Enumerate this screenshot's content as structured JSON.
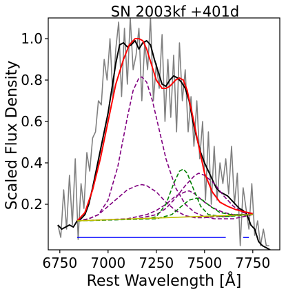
{
  "chart_data": {
    "type": "line",
    "title": "SN 2003kf  +401d",
    "xlabel": "Rest Wavelength [Å]",
    "ylabel": "Scaled Flux Density",
    "xlim": [
      6690,
      7890
    ],
    "ylim": [
      -0.02,
      1.1
    ],
    "xticks": [
      6750,
      7000,
      7250,
      7500,
      7750
    ],
    "yticks": [
      0.2,
      0.4,
      0.6,
      0.8,
      1.0
    ],
    "xtick_labels": [
      "6750",
      "7000",
      "7250",
      "7500",
      "7750"
    ],
    "ytick_labels": [
      "0.2",
      "0.4",
      "0.6",
      "0.8",
      "1.0"
    ],
    "grid": false,
    "series": [
      {
        "role": "raw-spectrum",
        "color": "#808080",
        "width": 1.6,
        "x": [
          6740,
          6755,
          6770,
          6785,
          6800,
          6815,
          6830,
          6845,
          6860,
          6875,
          6890,
          6905,
          6920,
          6935,
          6950,
          6965,
          6980,
          6995,
          7010,
          7025,
          7040,
          7055,
          7070,
          7085,
          7100,
          7115,
          7130,
          7145,
          7160,
          7175,
          7190,
          7205,
          7220,
          7235,
          7250,
          7265,
          7280,
          7295,
          7310,
          7325,
          7340,
          7355,
          7370,
          7385,
          7400,
          7415,
          7430,
          7445,
          7460,
          7475,
          7490,
          7505,
          7520,
          7535,
          7550,
          7565,
          7580,
          7595,
          7610,
          7625,
          7640,
          7655,
          7670,
          7685,
          7700,
          7715,
          7730,
          7745,
          7760,
          7775,
          7790,
          7805,
          7820,
          7835
        ],
        "y": [
          0.1,
          0.04,
          0.27,
          0.08,
          0.34,
          0.1,
          0.42,
          0.03,
          0.3,
          0.18,
          0.45,
          0.36,
          0.52,
          0.55,
          0.7,
          0.68,
          0.9,
          0.8,
          1.0,
          0.72,
          0.95,
          1.08,
          0.72,
          1.05,
          0.78,
          1.1,
          0.85,
          0.92,
          1.05,
          0.7,
          0.98,
          0.85,
          1.1,
          0.7,
          0.88,
          0.76,
          1.02,
          0.6,
          0.9,
          0.62,
          0.92,
          0.55,
          0.98,
          0.7,
          0.85,
          0.55,
          0.72,
          0.48,
          0.7,
          0.42,
          0.6,
          0.22,
          0.55,
          0.2,
          0.48,
          0.22,
          0.4,
          0.3,
          0.42,
          0.25,
          0.48,
          0.2,
          0.35,
          0.0,
          0.28,
          0.18,
          0.08,
          0.3,
          0.05,
          0.12,
          0.0,
          0.08,
          0.0,
          0.0
        ]
      },
      {
        "role": "smoothed-spectrum",
        "color": "#000000",
        "width": 2,
        "x": [
          6740,
          6760,
          6780,
          6800,
          6820,
          6840,
          6860,
          6880,
          6900,
          6920,
          6940,
          6960,
          6980,
          7000,
          7020,
          7040,
          7060,
          7080,
          7100,
          7120,
          7140,
          7160,
          7180,
          7200,
          7220,
          7240,
          7260,
          7280,
          7300,
          7320,
          7340,
          7360,
          7380,
          7400,
          7420,
          7440,
          7460,
          7480,
          7500,
          7520,
          7540,
          7560,
          7580,
          7600,
          7620,
          7640,
          7660,
          7680,
          7700,
          7720,
          7740,
          7760,
          7780,
          7800,
          7820,
          7840
        ],
        "y": [
          0.1,
          0.08,
          0.09,
          0.1,
          0.09,
          0.12,
          0.13,
          0.15,
          0.2,
          0.28,
          0.37,
          0.46,
          0.55,
          0.64,
          0.76,
          0.88,
          0.97,
          0.98,
          0.96,
          0.97,
          0.99,
          0.95,
          0.98,
          0.99,
          0.97,
          0.9,
          0.84,
          0.78,
          0.77,
          0.8,
          0.82,
          0.81,
          0.79,
          0.76,
          0.7,
          0.6,
          0.52,
          0.45,
          0.4,
          0.36,
          0.32,
          0.28,
          0.26,
          0.25,
          0.24,
          0.22,
          0.2,
          0.18,
          0.17,
          0.15,
          0.1,
          0.08,
          0.02,
          0.0,
          -0.01,
          -0.02
        ]
      },
      {
        "role": "gaussian-component",
        "color": "#800080",
        "dash": "6 3",
        "width": 1.6,
        "x": [
          6840,
          6900,
          6950,
          7000,
          7050,
          7100,
          7130,
          7160,
          7175,
          7200,
          7230,
          7260,
          7300,
          7350,
          7400,
          7450,
          7500,
          7550,
          7600,
          7650,
          7700,
          7750
        ],
        "y": [
          0.12,
          0.13,
          0.15,
          0.22,
          0.38,
          0.62,
          0.75,
          0.81,
          0.815,
          0.79,
          0.7,
          0.58,
          0.42,
          0.28,
          0.2,
          0.16,
          0.14,
          0.13,
          0.13,
          0.13,
          0.14,
          0.15
        ]
      },
      {
        "role": "gaussian-component",
        "color": "#800080",
        "dash": "6 3",
        "width": 1.6,
        "x": [
          6840,
          6900,
          6950,
          7000,
          7050,
          7100,
          7150,
          7175,
          7200,
          7250,
          7300,
          7350,
          7400,
          7450,
          7500,
          7550,
          7600,
          7650,
          7700,
          7750
        ],
        "y": [
          0.12,
          0.13,
          0.15,
          0.19,
          0.23,
          0.27,
          0.29,
          0.295,
          0.29,
          0.26,
          0.21,
          0.17,
          0.145,
          0.135,
          0.135,
          0.14,
          0.14,
          0.145,
          0.15,
          0.15
        ]
      },
      {
        "role": "gaussian-component",
        "color": "#800080",
        "dash": "6 3",
        "width": 1.6,
        "x": [
          6840,
          7000,
          7150,
          7250,
          7300,
          7350,
          7400,
          7450,
          7470,
          7500,
          7550,
          7600,
          7650,
          7700,
          7750
        ],
        "y": [
          0.12,
          0.125,
          0.13,
          0.15,
          0.18,
          0.23,
          0.29,
          0.34,
          0.35,
          0.34,
          0.3,
          0.24,
          0.19,
          0.16,
          0.15
        ]
      },
      {
        "role": "gaussian-component",
        "color": "#800080",
        "dash": "6 3",
        "width": 1.6,
        "x": [
          6840,
          7100,
          7200,
          7250,
          7300,
          7350,
          7400,
          7420,
          7450,
          7500,
          7550,
          7600,
          7650,
          7750
        ],
        "y": [
          0.12,
          0.13,
          0.15,
          0.17,
          0.2,
          0.24,
          0.26,
          0.265,
          0.25,
          0.21,
          0.18,
          0.16,
          0.15,
          0.15
        ]
      },
      {
        "role": "gaussian-component",
        "color": "#008000",
        "dash": "6 3",
        "width": 1.6,
        "x": [
          6840,
          7200,
          7250,
          7300,
          7340,
          7370,
          7390,
          7410,
          7440,
          7480,
          7520,
          7600,
          7750
        ],
        "y": [
          0.12,
          0.13,
          0.14,
          0.2,
          0.3,
          0.36,
          0.37,
          0.35,
          0.28,
          0.19,
          0.15,
          0.14,
          0.15
        ]
      },
      {
        "role": "gaussian-component",
        "color": "#008000",
        "dash": "6 3",
        "width": 1.6,
        "x": [
          6840,
          7250,
          7330,
          7380,
          7420,
          7460,
          7490,
          7530,
          7580,
          7640,
          7750
        ],
        "y": [
          0.12,
          0.13,
          0.15,
          0.19,
          0.22,
          0.23,
          0.22,
          0.19,
          0.16,
          0.15,
          0.15
        ]
      },
      {
        "role": "total-fit",
        "color": "#ff0000",
        "width": 2,
        "x": [
          6840,
          6880,
          6920,
          6960,
          7000,
          7040,
          7080,
          7110,
          7140,
          7160,
          7180,
          7200,
          7220,
          7250,
          7280,
          7300,
          7320,
          7350,
          7370,
          7390,
          7410,
          7440,
          7470,
          7500,
          7540,
          7580,
          7620,
          7660,
          7700,
          7750
        ],
        "y": [
          0.12,
          0.16,
          0.27,
          0.42,
          0.6,
          0.78,
          0.9,
          0.97,
          1.0,
          1.0,
          0.99,
          0.95,
          0.89,
          0.8,
          0.76,
          0.76,
          0.77,
          0.8,
          0.81,
          0.8,
          0.75,
          0.62,
          0.48,
          0.35,
          0.26,
          0.21,
          0.19,
          0.175,
          0.165,
          0.155
        ]
      },
      {
        "role": "continuum",
        "color": "#bfbf00",
        "width": 1.6,
        "x": [
          6840,
          7750
        ],
        "y": [
          0.12,
          0.15
        ]
      }
    ],
    "fit_ranges": [
      {
        "color": "#0000ff",
        "x0": 6840,
        "x1": 7610,
        "y": 0.04
      },
      {
        "color": "#0000ff",
        "x0": 7700,
        "x1": 7730,
        "y": 0.04
      }
    ]
  }
}
